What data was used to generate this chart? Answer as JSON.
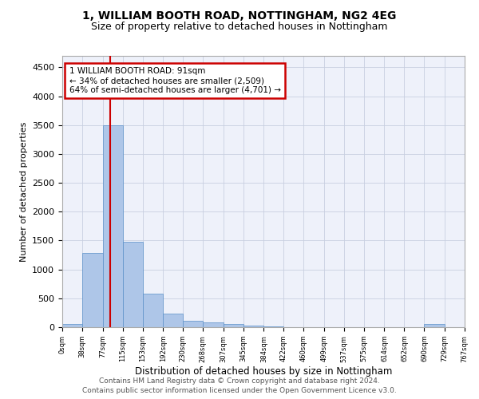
{
  "title1": "1, WILLIAM BOOTH ROAD, NOTTINGHAM, NG2 4EG",
  "title2": "Size of property relative to detached houses in Nottingham",
  "xlabel": "Distribution of detached houses by size in Nottingham",
  "ylabel": "Number of detached properties",
  "bin_labels": [
    "0sqm",
    "38sqm",
    "77sqm",
    "115sqm",
    "153sqm",
    "192sqm",
    "230sqm",
    "268sqm",
    "307sqm",
    "345sqm",
    "384sqm",
    "422sqm",
    "460sqm",
    "499sqm",
    "537sqm",
    "575sqm",
    "614sqm",
    "652sqm",
    "690sqm",
    "729sqm",
    "767sqm"
  ],
  "bin_edges": [
    0,
    38,
    77,
    115,
    153,
    192,
    230,
    268,
    307,
    345,
    384,
    422,
    460,
    499,
    537,
    575,
    614,
    652,
    690,
    729,
    767
  ],
  "bar_heights": [
    50,
    1280,
    3500,
    1480,
    580,
    240,
    115,
    85,
    55,
    30,
    10,
    5,
    3,
    2,
    0,
    0,
    0,
    0,
    50,
    0,
    0
  ],
  "bar_color": "#aec6e8",
  "bar_edgecolor": "#5a90c8",
  "property_size": 91,
  "red_line_color": "#cc0000",
  "annotation_line1": "1 WILLIAM BOOTH ROAD: 91sqm",
  "annotation_line2": "← 34% of detached houses are smaller (2,509)",
  "annotation_line3": "64% of semi-detached houses are larger (4,701) →",
  "annotation_box_edgecolor": "#cc0000",
  "ylim": [
    0,
    4700
  ],
  "yticks": [
    0,
    500,
    1000,
    1500,
    2000,
    2500,
    3000,
    3500,
    4000,
    4500
  ],
  "grid_color": "#c8cfe0",
  "bg_color": "#eef1fa",
  "footer1": "Contains HM Land Registry data © Crown copyright and database right 2024.",
  "footer2": "Contains public sector information licensed under the Open Government Licence v3.0."
}
